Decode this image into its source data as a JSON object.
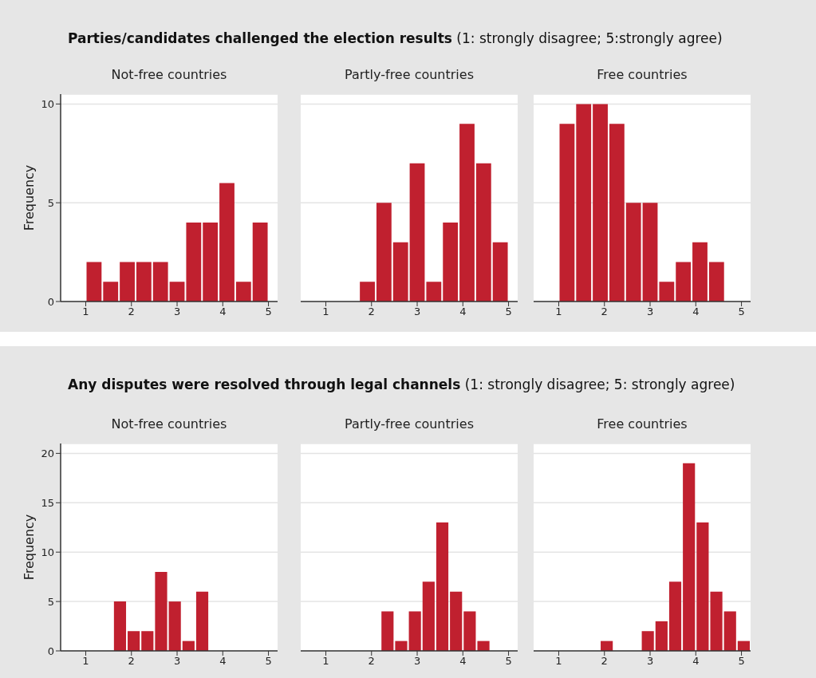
{
  "chart_data": [
    {
      "type": "other",
      "title": "Parties/candidates challenged the election results",
      "subtitle": "(1: strongly disagree; 5:strongly agree)"
    },
    {
      "type": "histogram",
      "title": "Not-free countries",
      "ylabel": "Frequency",
      "bins": [
        1,
        1.3636,
        1.7273,
        2.0909,
        2.4545,
        2.8182,
        3.1818,
        3.5455,
        3.9091,
        4.2727,
        4.6364,
        5
      ],
      "values": [
        2,
        1,
        2,
        2,
        2,
        1,
        4,
        4,
        6,
        1,
        4
      ],
      "color": "#c0202f",
      "xlim": [
        0.45,
        5.2
      ],
      "xticks": [
        1,
        2,
        3,
        4,
        5
      ],
      "ylim": [
        0,
        10.5
      ],
      "yticks": [
        0,
        5,
        10
      ],
      "grid": "y"
    },
    {
      "type": "histogram",
      "title": "Partly-free countries",
      "bins": [
        1,
        1.3636,
        1.7273,
        2.0909,
        2.4545,
        2.8182,
        3.1818,
        3.5455,
        3.9091,
        4.2727,
        4.6364,
        5
      ],
      "values": [
        0,
        0,
        1,
        5,
        3,
        7,
        1,
        4,
        9,
        7,
        3
      ],
      "color": "#c0202f",
      "xlim": [
        0.45,
        5.2
      ],
      "xticks": [
        1,
        2,
        3,
        4,
        5
      ],
      "ylim": [
        0,
        10.5
      ],
      "yticks": [
        0,
        5,
        10
      ],
      "grid": "y",
      "tick_labels": "x"
    },
    {
      "type": "histogram",
      "title": "Free countries",
      "bins": [
        1,
        1.3636,
        1.7273,
        2.0909,
        2.4545,
        2.8182,
        3.1818,
        3.5455,
        3.9091,
        4.2727,
        4.6364,
        5
      ],
      "values": [
        9,
        10,
        10,
        9,
        5,
        5,
        1,
        2,
        3,
        2,
        0
      ],
      "color": "#c0202f",
      "xlim": [
        0.45,
        5.2
      ],
      "xticks": [
        1,
        2,
        3,
        4,
        5
      ],
      "ylim": [
        0,
        10.5
      ],
      "yticks": [
        0,
        5,
        10
      ],
      "grid": "y",
      "tick_labels": "x"
    },
    {
      "type": "other",
      "title": "Any disputes were resolved through legal channels",
      "subtitle": "(1: strongly disagree; 5: strongly agree)"
    },
    {
      "type": "histogram",
      "title": "Not-free countries",
      "ylabel": "Frequency",
      "bins": [
        1.6,
        1.9,
        2.2,
        2.5,
        2.8,
        3.1,
        3.4,
        3.7,
        4.0,
        4.3,
        4.6,
        4.9,
        5.2
      ],
      "values": [
        5,
        2,
        2,
        8,
        5,
        1,
        6,
        0,
        0,
        0,
        0,
        0
      ],
      "color": "#c0202f",
      "xlim": [
        0.45,
        5.2
      ],
      "xticks": [
        1,
        2,
        3,
        4,
        5
      ],
      "ylim": [
        0,
        21
      ],
      "yticks": [
        0,
        5,
        10,
        15,
        20
      ],
      "grid": "y"
    },
    {
      "type": "histogram",
      "title": "Partly-free countries",
      "bins": [
        1.6,
        1.9,
        2.2,
        2.5,
        2.8,
        3.1,
        3.4,
        3.7,
        4.0,
        4.3,
        4.6,
        4.9,
        5.2
      ],
      "values": [
        0,
        0,
        4,
        1,
        4,
        7,
        13,
        6,
        4,
        1,
        0,
        0
      ],
      "color": "#c0202f",
      "xlim": [
        0.45,
        5.2
      ],
      "xticks": [
        1,
        2,
        3,
        4,
        5
      ],
      "ylim": [
        0,
        21
      ],
      "yticks": [
        0,
        5,
        10,
        15,
        20
      ],
      "grid": "y",
      "tick_labels": "x"
    },
    {
      "type": "histogram",
      "title": "Free countries",
      "bins": [
        1.6,
        1.9,
        2.2,
        2.5,
        2.8,
        3.1,
        3.4,
        3.7,
        4.0,
        4.3,
        4.6,
        4.9,
        5.2
      ],
      "values": [
        0,
        1,
        0,
        0,
        2,
        3,
        7,
        19,
        13,
        6,
        4,
        1
      ],
      "color": "#c0202f",
      "xlim": [
        0.45,
        5.2
      ],
      "xticks": [
        1,
        2,
        3,
        4,
        5
      ],
      "ylim": [
        0,
        21
      ],
      "yticks": [
        0,
        5,
        10,
        15,
        20
      ],
      "grid": "y",
      "tick_labels": "x"
    }
  ]
}
